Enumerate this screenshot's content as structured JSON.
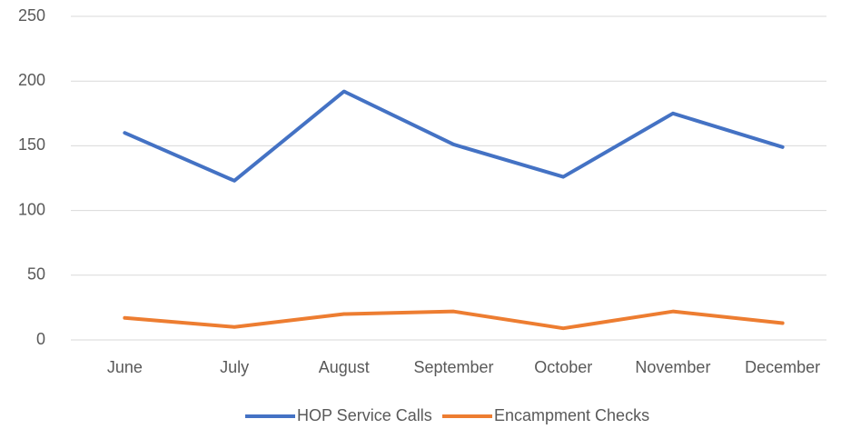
{
  "chart_data": {
    "type": "line",
    "categories": [
      "June",
      "July",
      "August",
      "September",
      "October",
      "November",
      "December"
    ],
    "series": [
      {
        "name": "HOP Service Calls",
        "color": "#4472c4",
        "values": [
          160,
          123,
          192,
          151,
          126,
          175,
          149
        ]
      },
      {
        "name": "Encampment Checks",
        "color": "#ed7d31",
        "values": [
          17,
          10,
          20,
          22,
          9,
          22,
          13
        ]
      }
    ],
    "ylim": [
      0,
      250
    ],
    "yticks": [
      0,
      50,
      100,
      150,
      200,
      250
    ],
    "grid": true,
    "legend": "bottom"
  }
}
